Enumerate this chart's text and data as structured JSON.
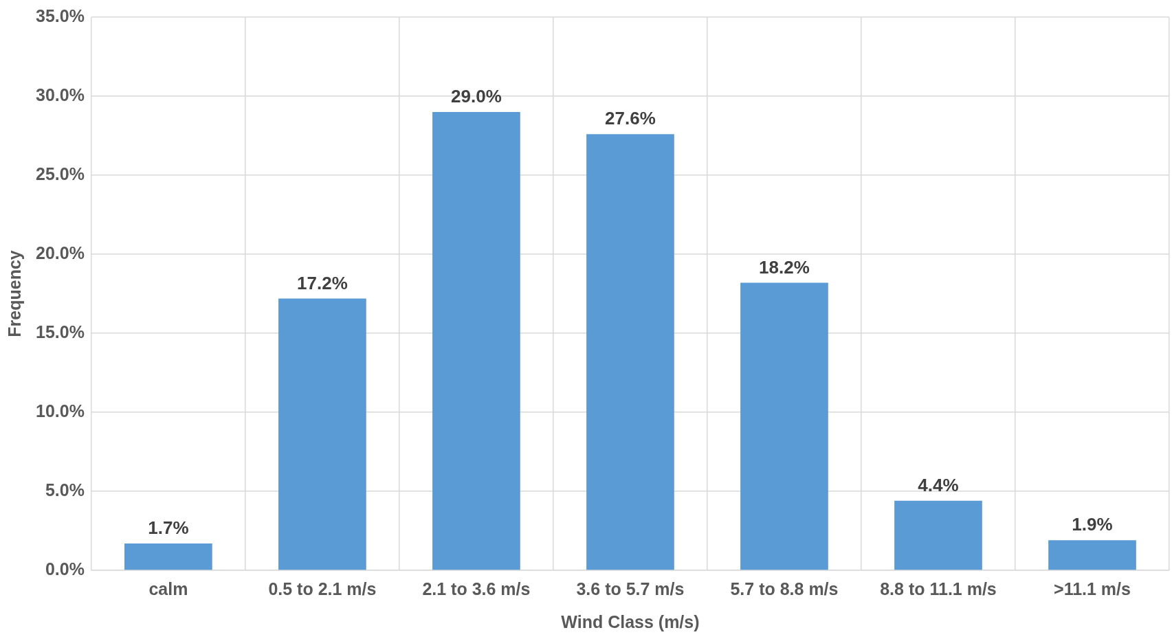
{
  "chart_data": {
    "type": "bar",
    "xlabel": "Wind Class (m/s)",
    "ylabel": "Frequency",
    "categories": [
      "calm",
      "0.5 to 2.1 m/s",
      "2.1 to 3.6 m/s",
      "3.6 to 5.7 m/s",
      "5.7 to 8.8 m/s",
      "8.8 to 11.1 m/s",
      ">11.1 m/s"
    ],
    "values": [
      1.7,
      17.2,
      29.0,
      27.6,
      18.2,
      4.4,
      1.9
    ],
    "value_labels": [
      "1.7%",
      "17.2%",
      "29.0%",
      "27.6%",
      "18.2%",
      "4.4%",
      "1.9%"
    ],
    "color": "#5b9bd5",
    "ylim": [
      0,
      35
    ],
    "yticks": [
      {
        "value": 0,
        "label": "0.0%"
      },
      {
        "value": 5,
        "label": "5.0%"
      },
      {
        "value": 10,
        "label": "10.0%"
      },
      {
        "value": 15,
        "label": "15.0%"
      },
      {
        "value": 20,
        "label": "20.0%"
      },
      {
        "value": 25,
        "label": "25.0%"
      },
      {
        "value": 30,
        "label": "30.0%"
      },
      {
        "value": 35,
        "label": "35.0%"
      }
    ],
    "grid": true,
    "legend": false
  }
}
